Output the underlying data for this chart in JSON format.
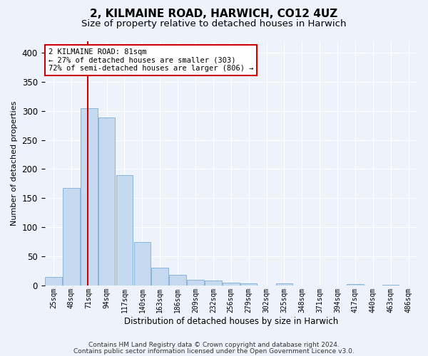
{
  "title1": "2, KILMAINE ROAD, HARWICH, CO12 4UZ",
  "title2": "Size of property relative to detached houses in Harwich",
  "xlabel": "Distribution of detached houses by size in Harwich",
  "ylabel": "Number of detached properties",
  "categories": [
    "25sqm",
    "48sqm",
    "71sqm",
    "94sqm",
    "117sqm",
    "140sqm",
    "163sqm",
    "186sqm",
    "209sqm",
    "232sqm",
    "256sqm",
    "279sqm",
    "302sqm",
    "325sqm",
    "348sqm",
    "371sqm",
    "394sqm",
    "417sqm",
    "440sqm",
    "463sqm",
    "486sqm"
  ],
  "values": [
    14,
    167,
    305,
    288,
    190,
    75,
    30,
    18,
    10,
    8,
    5,
    3,
    0,
    3,
    0,
    0,
    0,
    2,
    0,
    1,
    0
  ],
  "bar_color": "#c5d9f0",
  "bar_edge_color": "#7bafd4",
  "marker_line_color": "#cc0000",
  "annotation_text": "2 KILMAINE ROAD: 81sqm\n← 27% of detached houses are smaller (303)\n72% of semi-detached houses are larger (806) →",
  "annotation_box_color": "#ffffff",
  "annotation_box_edge": "#cc0000",
  "footer1": "Contains HM Land Registry data © Crown copyright and database right 2024.",
  "footer2": "Contains public sector information licensed under the Open Government Licence v3.0.",
  "bg_color": "#eef2fb",
  "plot_bg_color": "#eef2fb",
  "ylim": [
    0,
    420
  ],
  "yticks": [
    0,
    50,
    100,
    150,
    200,
    250,
    300,
    350,
    400
  ],
  "title_fontsize": 11,
  "subtitle_fontsize": 9.5
}
